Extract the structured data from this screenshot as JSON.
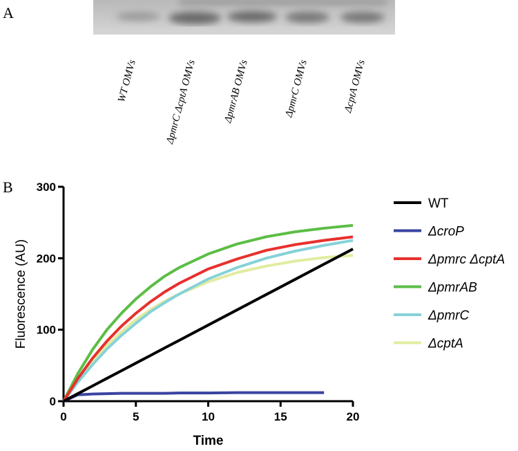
{
  "panel_a": {
    "label": "A",
    "lanes": [
      "WT OMVs",
      "ΔpmrC  ΔcptA OMVs",
      "ΔpmrAB OMVs",
      "ΔpmrC OMVs",
      "ΔcptA OMVs"
    ]
  },
  "chart_data": {
    "type": "line",
    "panel_label": "B",
    "xlabel": "Time",
    "ylabel": "Fluorescence (AU)",
    "x": [
      0,
      1,
      2,
      3,
      4,
      5,
      6,
      7,
      8,
      10,
      12,
      14,
      16,
      18,
      20
    ],
    "series": [
      {
        "name": "WT",
        "color": "#000000",
        "values": [
          0,
          10.7,
          21.3,
          32,
          42.6,
          53.3,
          63.9,
          74.6,
          85.2,
          106.5,
          127.8,
          149.1,
          170.4,
          191.7,
          213
        ]
      },
      {
        "name": "ΔcroP",
        "color": "#3a43a0",
        "values": [
          0,
          9,
          10,
          10.5,
          11,
          11,
          11,
          11,
          11.5,
          11.5,
          12,
          12,
          12,
          12,
          null
        ]
      },
      {
        "name": "Δpmrc ΔcptA",
        "color": "#e8302c",
        "values": [
          0,
          32,
          60,
          84,
          105,
          123,
          139,
          153,
          165,
          185,
          199,
          211,
          219,
          225,
          230
        ]
      },
      {
        "name": "ΔpmrAB",
        "color": "#5cbd45",
        "values": [
          0,
          39,
          72,
          100,
          123,
          143,
          160,
          175,
          187,
          206,
          220,
          230,
          237,
          242,
          246
        ]
      },
      {
        "name": "ΔpmrC",
        "color": "#86d2d8",
        "values": [
          0,
          27,
          51,
          73,
          92,
          109,
          125,
          138,
          150,
          171,
          187,
          200,
          210,
          218,
          225
        ]
      },
      {
        "name": "ΔcptA",
        "color": "#e2eca0",
        "values": [
          0,
          30,
          56,
          78,
          97,
          114,
          128,
          140,
          150,
          167,
          180,
          189,
          196,
          201,
          204
        ]
      }
    ],
    "xlim": [
      0,
      20
    ],
    "xticks": [
      0,
      5,
      10,
      15,
      20
    ],
    "ylim": [
      0,
      300
    ],
    "yticks": [
      0,
      100,
      200,
      300
    ],
    "legend": "right"
  }
}
